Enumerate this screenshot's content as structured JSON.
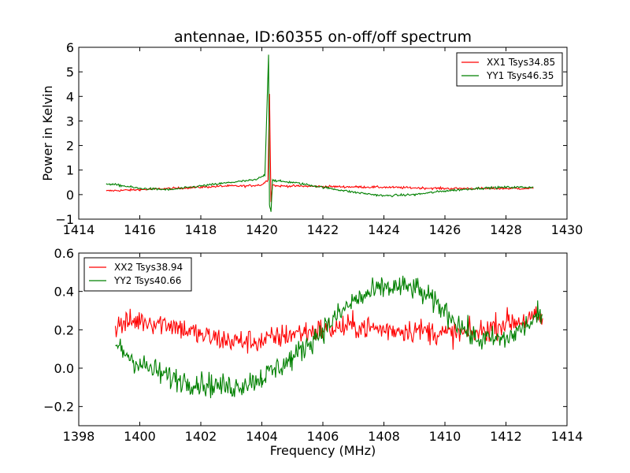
{
  "title": "antennae, ID:60355 on-off/off spectrum",
  "chart_data": [
    {
      "type": "line",
      "ylabel": "Power in Kelvin",
      "xlabel": "",
      "xlim": [
        1414,
        1430
      ],
      "ylim": [
        -1,
        6
      ],
      "xticks": [
        "1414",
        "1416",
        "1418",
        "1420",
        "1422",
        "1424",
        "1426",
        "1428",
        "1430"
      ],
      "yticks": [
        "−1",
        "0",
        "1",
        "2",
        "3",
        "4",
        "5",
        "6"
      ],
      "legend": "top-right",
      "x_range": [
        1414.9,
        1428.9
      ],
      "series": [
        {
          "name": "XX1 Tsys34.85",
          "color": "#ff0000",
          "x": [
            1414.9,
            1416,
            1417,
            1418,
            1418.8,
            1419.5,
            1420.0,
            1420.2,
            1420.25,
            1420.3,
            1420.35,
            1420.5,
            1421,
            1422,
            1424,
            1426,
            1428,
            1428.9
          ],
          "values": [
            0.15,
            0.2,
            0.25,
            0.3,
            0.35,
            0.35,
            0.4,
            0.6,
            4.1,
            -0.3,
            0.4,
            0.35,
            0.35,
            0.33,
            0.3,
            0.25,
            0.25,
            0.25
          ]
        },
        {
          "name": "YY1 Tsys46.35",
          "color": "#008000",
          "x": [
            1414.9,
            1415.5,
            1416,
            1417,
            1418,
            1419,
            1419.8,
            1420.1,
            1420.22,
            1420.25,
            1420.3,
            1420.35,
            1420.5,
            1421,
            1422,
            1423,
            1424,
            1425,
            1426,
            1427,
            1428,
            1428.9
          ],
          "values": [
            0.45,
            0.35,
            0.25,
            0.2,
            0.35,
            0.5,
            0.6,
            0.8,
            5.7,
            -0.4,
            -0.7,
            0.6,
            0.55,
            0.5,
            0.3,
            0.1,
            -0.05,
            0.0,
            0.15,
            0.25,
            0.3,
            0.3
          ]
        }
      ]
    },
    {
      "type": "line",
      "xlabel": "Frequency (MHz)",
      "ylabel": "",
      "xlim": [
        1398,
        1414
      ],
      "ylim": [
        -0.3,
        0.6
      ],
      "xticks": [
        "1398",
        "1400",
        "1402",
        "1404",
        "1406",
        "1408",
        "1410",
        "1412",
        "1414"
      ],
      "yticks": [
        "−0.2",
        "0.0",
        "0.2",
        "0.4",
        "0.6"
      ],
      "legend": "top-left",
      "x_range": [
        1399.2,
        1413.2
      ],
      "series": [
        {
          "name": "XX2 Tsys38.94",
          "color": "#ff0000",
          "x": [
            1399.2,
            1400,
            1401,
            1402,
            1403,
            1404,
            1405,
            1406,
            1407,
            1408,
            1409,
            1410,
            1411,
            1412,
            1413.2
          ],
          "values": [
            0.22,
            0.25,
            0.23,
            0.17,
            0.14,
            0.14,
            0.18,
            0.2,
            0.22,
            0.2,
            0.2,
            0.18,
            0.18,
            0.24,
            0.26
          ]
        },
        {
          "name": "YY2 Tsys40.66",
          "color": "#008000",
          "x": [
            1399.2,
            1400,
            1401,
            1402,
            1403,
            1404,
            1405,
            1406,
            1407,
            1408,
            1409,
            1410,
            1411,
            1412,
            1413.2
          ],
          "values": [
            0.12,
            0.02,
            -0.05,
            -0.08,
            -0.1,
            -0.05,
            0.05,
            0.2,
            0.35,
            0.42,
            0.42,
            0.3,
            0.15,
            0.15,
            0.28
          ]
        }
      ]
    }
  ]
}
